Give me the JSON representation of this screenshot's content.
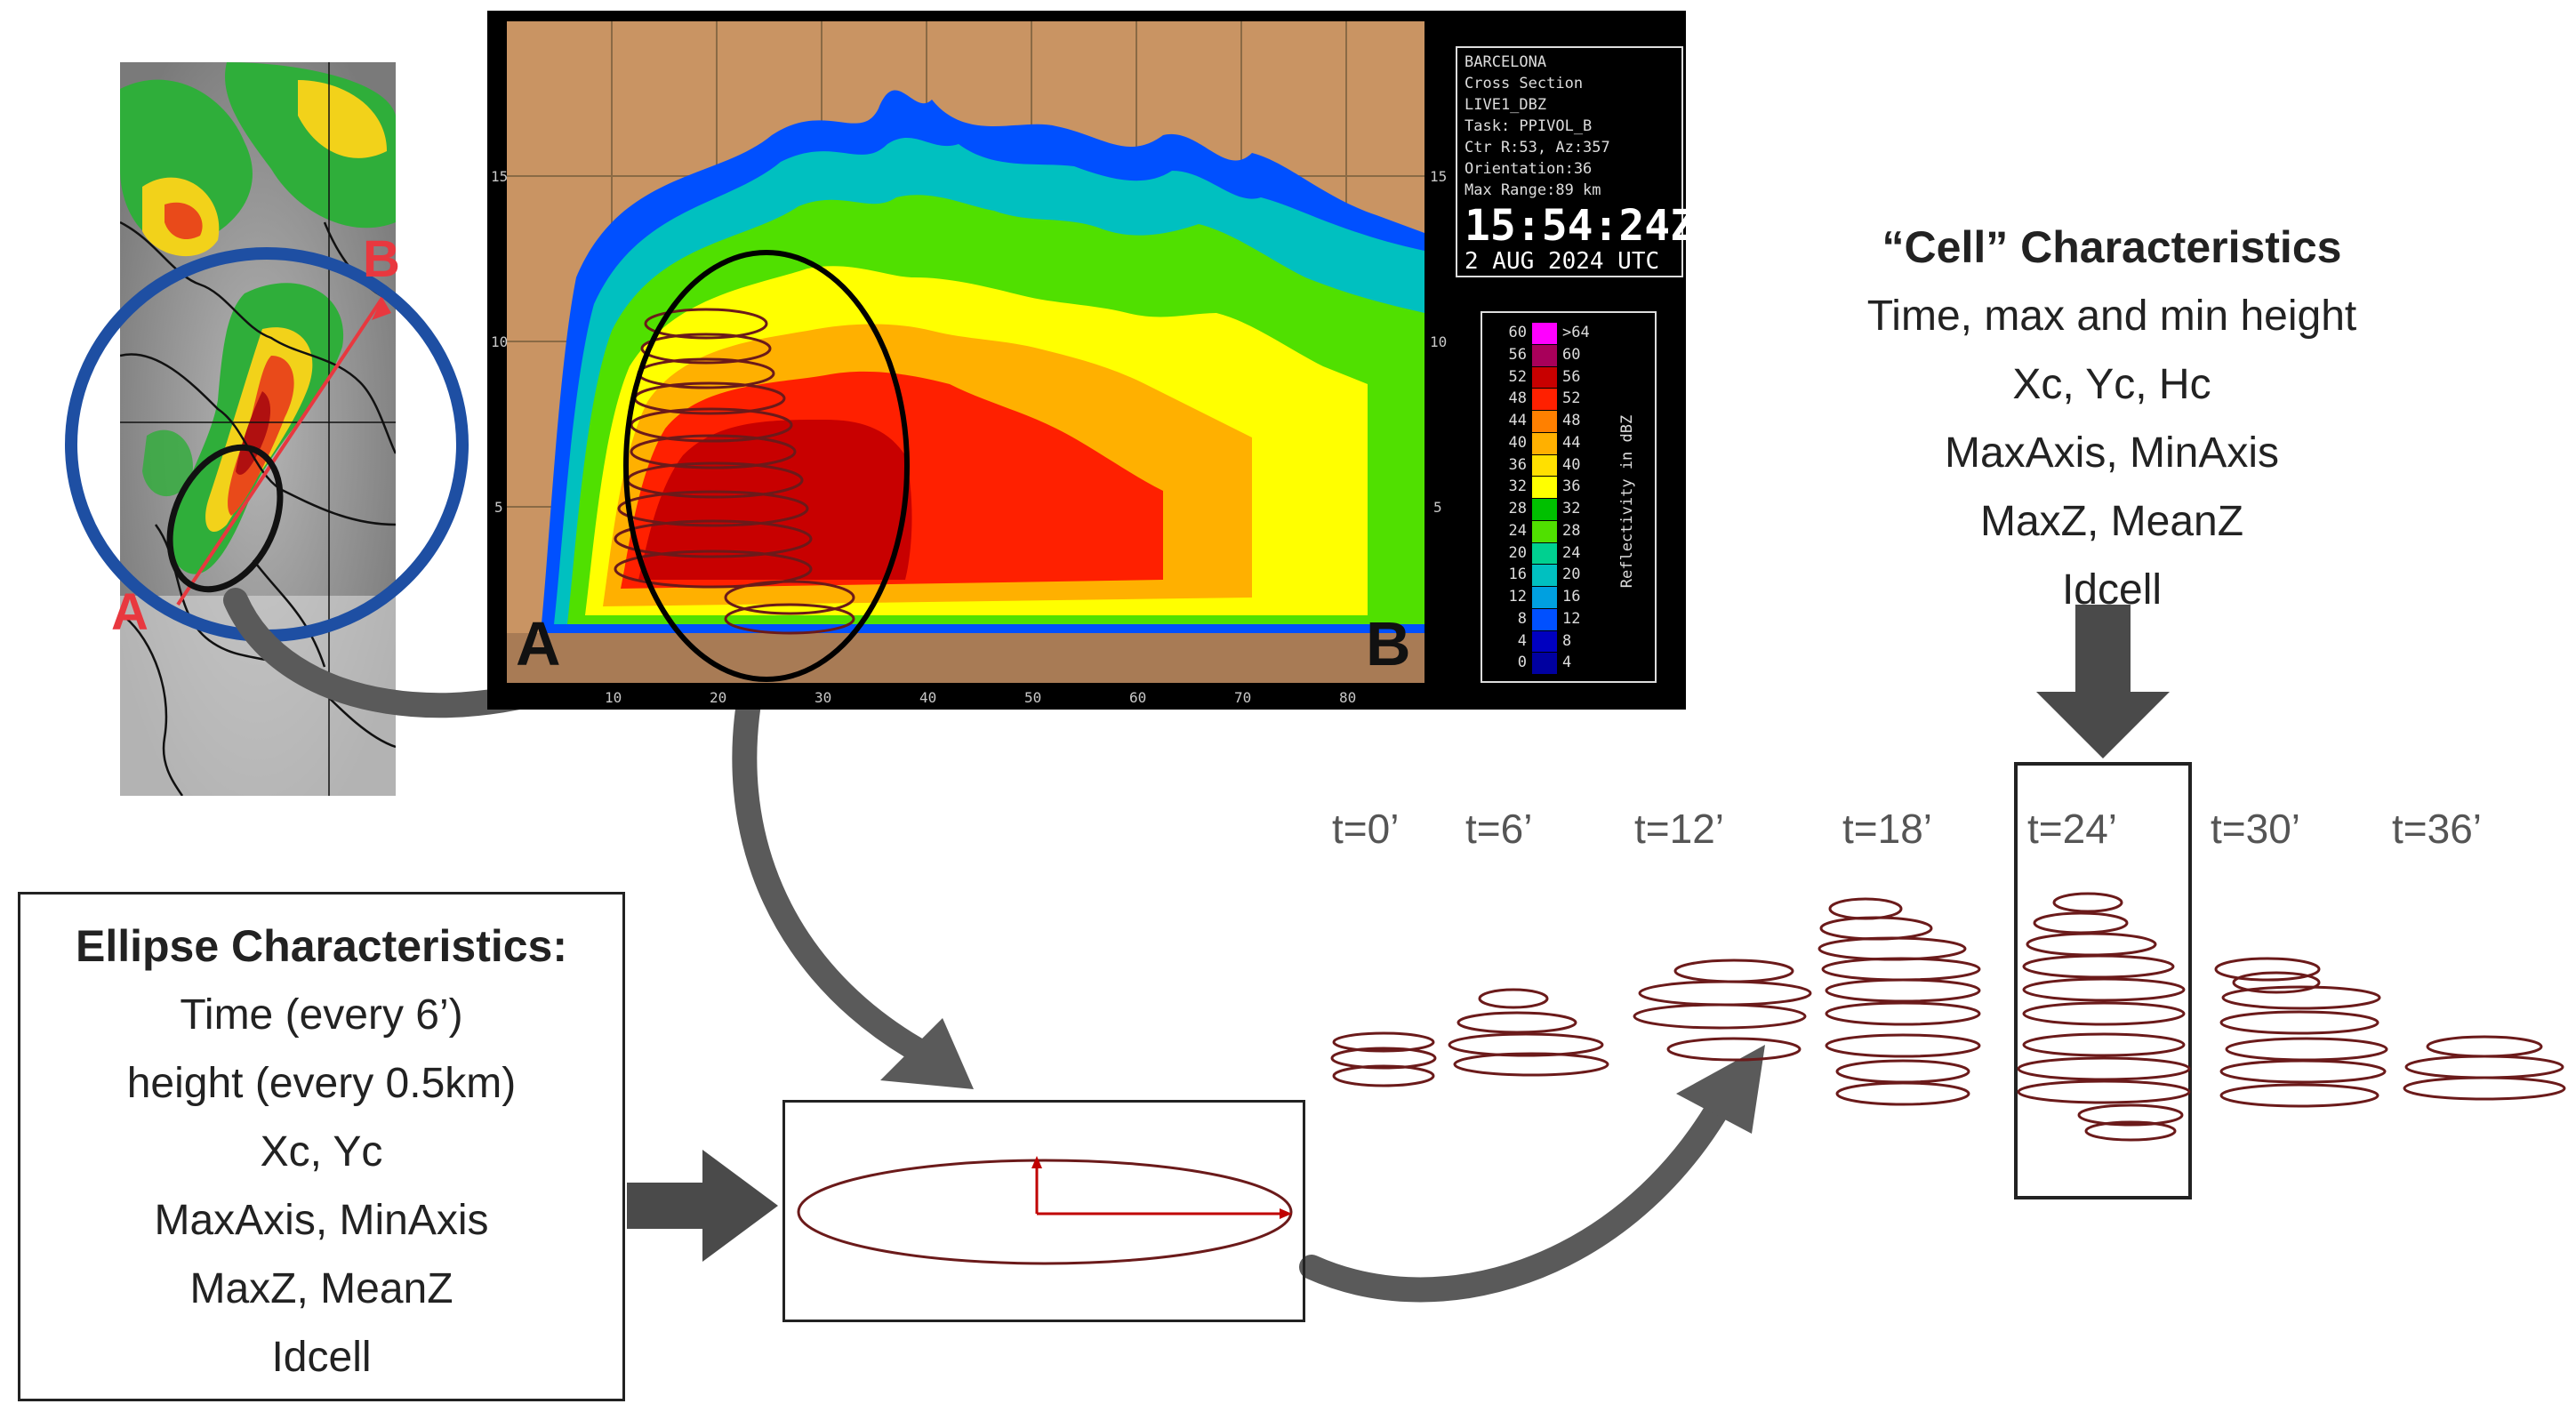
{
  "map": {
    "label_a": "A",
    "label_b": "B"
  },
  "cross_section": {
    "label_a": "A",
    "label_b": "B",
    "x_ticks": [
      "10",
      "20",
      "30",
      "40",
      "50",
      "60",
      "70",
      "80"
    ],
    "y_ticks": [
      "15",
      "10",
      "5"
    ],
    "info": {
      "site": "BARCELONA",
      "product": "Cross Section",
      "field": "LIVE1_DBZ",
      "task": "Task: PPIVOL_B",
      "ctr": "Ctr R:53, Az:357",
      "orientation": "Orientation:36",
      "max_range": "Max Range:89 km",
      "time": "15:54:24Z",
      "date": "2 AUG 2024 UTC"
    },
    "colorbar": {
      "title": "Reflectivity in dBZ",
      "levels": [
        {
          "left": "60",
          "right": ">64",
          "color": "#ff00ff"
        },
        {
          "left": "56",
          "right": "60",
          "color": "#a8005a"
        },
        {
          "left": "52",
          "right": "56",
          "color": "#c80000"
        },
        {
          "left": "48",
          "right": "52",
          "color": "#ff2000"
        },
        {
          "left": "44",
          "right": "48",
          "color": "#ff8000"
        },
        {
          "left": "40",
          "right": "44",
          "color": "#ffb000"
        },
        {
          "left": "36",
          "right": "40",
          "color": "#ffe000"
        },
        {
          "left": "32",
          "right": "36",
          "color": "#ffff00"
        },
        {
          "left": "28",
          "right": "32",
          "color": "#00c000"
        },
        {
          "left": "24",
          "right": "28",
          "color": "#50e000"
        },
        {
          "left": "20",
          "right": "24",
          "color": "#00d090"
        },
        {
          "left": "16",
          "right": "20",
          "color": "#00c0c0"
        },
        {
          "left": "12",
          "right": "16",
          "color": "#00a0e0"
        },
        {
          "left": "8",
          "right": "12",
          "color": "#0050ff"
        },
        {
          "left": "4",
          "right": "8",
          "color": "#0000c0"
        },
        {
          "left": "0",
          "right": "4",
          "color": "#0000a0"
        }
      ]
    }
  },
  "cell_characteristics": {
    "title": "“Cell” Characteristics",
    "lines": [
      "Time, max and min height",
      "Xc, Yc, Hc",
      "MaxAxis, MinAxis",
      "MaxZ, MeanZ",
      "Idcell"
    ]
  },
  "ellipse_characteristics": {
    "title": "Ellipse Characteristics:",
    "lines": [
      "Time (every 6’)",
      "height (every 0.5km)",
      "Xc, Yc",
      "MaxAxis, MinAxis",
      "MaxZ, MeanZ",
      "Idcell"
    ]
  },
  "timeline": {
    "labels": [
      "t=0’",
      "t=6’",
      "t=12’",
      "t=18’",
      "t=24’",
      "t=30’",
      "t=36’"
    ],
    "highlighted": "t=24’"
  },
  "colors": {
    "ellipse_stroke": "#6b1a1a",
    "arrow": "#555555",
    "radar_ring": "#1e4fa3",
    "cross_line": "#e8383f",
    "axis_arrow": "#c00000"
  }
}
